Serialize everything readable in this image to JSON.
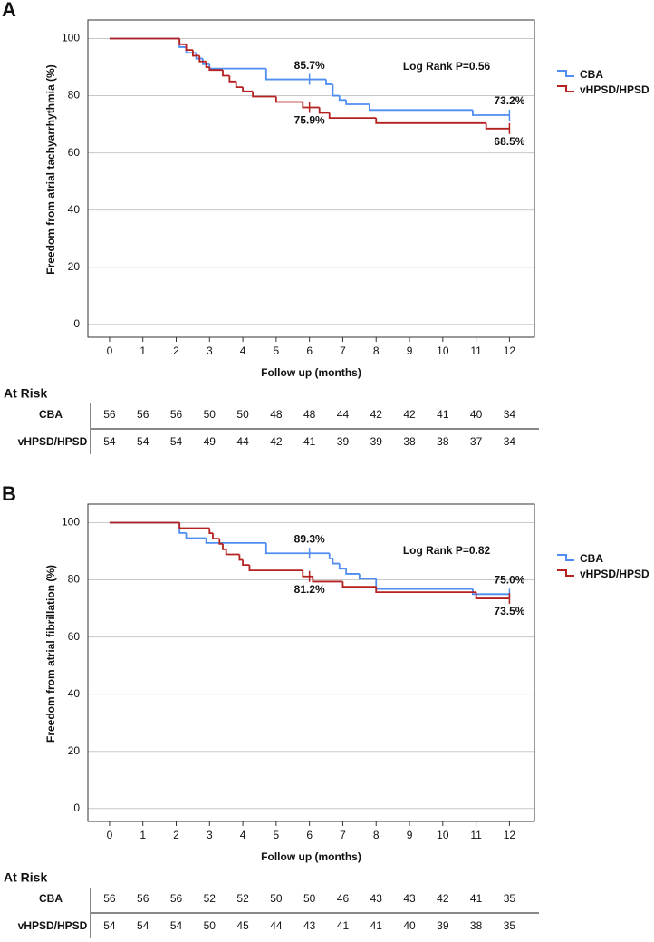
{
  "chart_data": [
    {
      "type": "step",
      "panel_label": "A",
      "y_label": "Freedom from atrial tachyarrhythmia (%)",
      "x_label": "Follow up (months)",
      "xlim": [
        -0.65,
        12.75
      ],
      "ylim": [
        -4.5,
        106.5
      ],
      "xticks": [
        0,
        1,
        2,
        3,
        4,
        5,
        6,
        7,
        8,
        9,
        10,
        11,
        12
      ],
      "yticks": [
        0,
        20,
        40,
        60,
        80,
        100
      ],
      "grid": true,
      "annotation": "Log Rank P=0.56",
      "series": [
        {
          "name": "CBA",
          "color": "#4f8ef0",
          "x": [
            0,
            2.1,
            2.3,
            2.6,
            2.8,
            3.0,
            4.7,
            6.5,
            6.7,
            6.9,
            7.1,
            7.8,
            10.9,
            12
          ],
          "values": [
            100,
            97,
            95,
            93,
            91,
            89.5,
            85.7,
            84,
            80,
            78.5,
            77,
            75,
            73.2,
            73.2
          ],
          "censor_x": [
            6,
            12
          ],
          "censor_values": [
            85.7,
            73.2
          ],
          "censor_value_labels": [
            "85.7%",
            "73.2%"
          ]
        },
        {
          "name": "vHPSD/HPSD",
          "color": "#b52020",
          "x": [
            0,
            2.1,
            2.3,
            2.5,
            2.7,
            2.9,
            3.0,
            3.4,
            3.6,
            3.8,
            4.0,
            4.3,
            5.0,
            5.8,
            6.3,
            6.6,
            8.0,
            11.3,
            12
          ],
          "values": [
            100,
            98,
            96,
            94,
            92,
            90,
            89,
            87,
            85,
            83,
            81.5,
            79.7,
            77.8,
            75.9,
            74,
            72.2,
            70.4,
            68.5,
            68.5
          ],
          "censor_x": [
            6,
            12
          ],
          "censor_values": [
            75.9,
            68.5
          ],
          "censor_value_labels": [
            "75.9%",
            "68.5%"
          ]
        }
      ],
      "at_risk": {
        "title": "At Risk",
        "rows": [
          {
            "name": "CBA",
            "values": [
              56,
              56,
              56,
              50,
              50,
              48,
              48,
              44,
              42,
              42,
              41,
              40,
              34
            ]
          },
          {
            "name": "vHPSD/HPSD",
            "values": [
              54,
              54,
              54,
              49,
              44,
              42,
              41,
              39,
              39,
              38,
              38,
              37,
              34
            ]
          }
        ]
      }
    },
    {
      "type": "step",
      "panel_label": "B",
      "y_label": "Freedom from atrial fibrillation (%)",
      "x_label": "Follow up (months)",
      "xlim": [
        -0.65,
        12.75
      ],
      "ylim": [
        -4.5,
        106.5
      ],
      "xticks": [
        0,
        1,
        2,
        3,
        4,
        5,
        6,
        7,
        8,
        9,
        10,
        11,
        12
      ],
      "yticks": [
        0,
        20,
        40,
        60,
        80,
        100
      ],
      "grid": true,
      "annotation": "Log Rank P=0.82",
      "series": [
        {
          "name": "CBA",
          "color": "#4f8ef0",
          "x": [
            0,
            2.1,
            2.3,
            2.9,
            4.7,
            6.6,
            6.7,
            6.9,
            7.1,
            7.5,
            8.0,
            10.9,
            12
          ],
          "values": [
            100,
            96.4,
            94.6,
            92.9,
            89.3,
            87.5,
            85.7,
            83.9,
            82.1,
            80.4,
            76.8,
            75.0,
            75.0
          ],
          "censor_x": [
            6,
            12
          ],
          "censor_values": [
            89.3,
            75.0
          ],
          "censor_value_labels": [
            "89.3%",
            "75.0%"
          ]
        },
        {
          "name": "vHPSD/HPSD",
          "color": "#b52020",
          "x": [
            0,
            2.1,
            3.0,
            3.1,
            3.3,
            3.4,
            3.5,
            3.9,
            4.0,
            4.2,
            5.8,
            6.1,
            7.0,
            8.0,
            11.0,
            12
          ],
          "values": [
            100,
            98.1,
            96.3,
            94.4,
            92.6,
            90.7,
            88.9,
            87.0,
            85.2,
            83.3,
            81.2,
            79.4,
            77.6,
            75.7,
            73.5,
            73.5
          ],
          "censor_x": [
            6,
            12
          ],
          "censor_values": [
            81.2,
            73.5
          ],
          "censor_value_labels": [
            "81.2%",
            "73.5%"
          ]
        }
      ],
      "at_risk": {
        "title": "At Risk",
        "rows": [
          {
            "name": "CBA",
            "values": [
              56,
              56,
              56,
              52,
              52,
              50,
              50,
              46,
              43,
              43,
              42,
              41,
              35
            ]
          },
          {
            "name": "vHPSD/HPSD",
            "values": [
              54,
              54,
              54,
              50,
              45,
              44,
              43,
              41,
              41,
              40,
              39,
              38,
              35
            ]
          }
        ]
      }
    }
  ]
}
